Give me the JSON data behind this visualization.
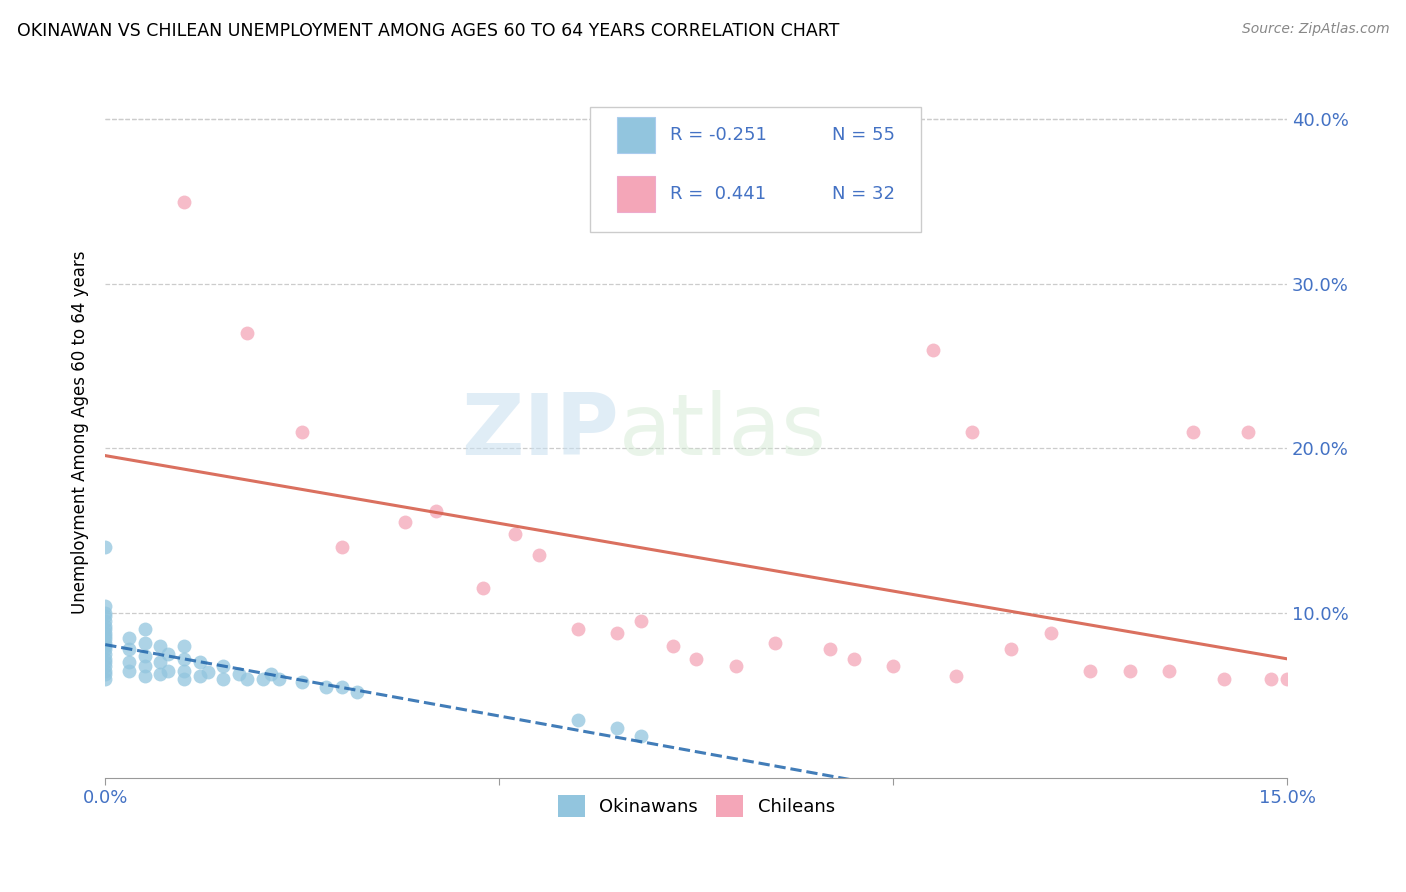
{
  "title": "OKINAWAN VS CHILEAN UNEMPLOYMENT AMONG AGES 60 TO 64 YEARS CORRELATION CHART",
  "source": "Source: ZipAtlas.com",
  "ylabel": "Unemployment Among Ages 60 to 64 years",
  "xlim": [
    0.0,
    0.15
  ],
  "ylim": [
    0.0,
    0.42
  ],
  "legend_label1": "Okinawans",
  "legend_label2": "Chileans",
  "legend_R1": "-0.251",
  "legend_N1": "55",
  "legend_R2": "0.441",
  "legend_N2": "32",
  "color_blue": "#92c5de",
  "color_pink": "#f4a6b8",
  "color_blue_line": "#2166ac",
  "color_pink_line": "#d6604d",
  "watermark_zip": "ZIP",
  "watermark_atlas": "atlas",
  "okinawan_x": [
    0.0,
    0.0,
    0.0,
    0.0,
    0.0,
    0.0,
    0.0,
    0.0,
    0.0,
    0.0,
    0.0,
    0.0,
    0.0,
    0.0,
    0.0,
    0.0,
    0.0,
    0.0,
    0.0,
    0.0,
    0.003,
    0.003,
    0.003,
    0.003,
    0.005,
    0.005,
    0.005,
    0.005,
    0.005,
    0.007,
    0.007,
    0.007,
    0.008,
    0.008,
    0.01,
    0.01,
    0.01,
    0.01,
    0.012,
    0.012,
    0.013,
    0.015,
    0.015,
    0.017,
    0.018,
    0.02,
    0.021,
    0.022,
    0.025,
    0.028,
    0.03,
    0.032,
    0.06,
    0.065,
    0.068
  ],
  "okinawan_y": [
    0.06,
    0.063,
    0.065,
    0.068,
    0.07,
    0.072,
    0.075,
    0.078,
    0.08,
    0.082,
    0.084,
    0.086,
    0.088,
    0.09,
    0.092,
    0.095,
    0.098,
    0.1,
    0.104,
    0.14,
    0.065,
    0.07,
    0.078,
    0.085,
    0.062,
    0.068,
    0.074,
    0.082,
    0.09,
    0.063,
    0.07,
    0.08,
    0.065,
    0.075,
    0.06,
    0.065,
    0.072,
    0.08,
    0.062,
    0.07,
    0.064,
    0.06,
    0.068,
    0.063,
    0.06,
    0.06,
    0.063,
    0.06,
    0.058,
    0.055,
    0.055,
    0.052,
    0.035,
    0.03,
    0.025
  ],
  "chilean_x": [
    0.01,
    0.018,
    0.025,
    0.03,
    0.038,
    0.042,
    0.048,
    0.052,
    0.055,
    0.06,
    0.065,
    0.068,
    0.072,
    0.075,
    0.08,
    0.085,
    0.092,
    0.095,
    0.1,
    0.105,
    0.108,
    0.11,
    0.115,
    0.12,
    0.125,
    0.13,
    0.135,
    0.138,
    0.142,
    0.145,
    0.148,
    0.15
  ],
  "chilean_y": [
    0.35,
    0.27,
    0.21,
    0.14,
    0.155,
    0.162,
    0.115,
    0.148,
    0.135,
    0.09,
    0.088,
    0.095,
    0.08,
    0.072,
    0.068,
    0.082,
    0.078,
    0.072,
    0.068,
    0.26,
    0.062,
    0.21,
    0.078,
    0.088,
    0.065,
    0.065,
    0.065,
    0.21,
    0.06,
    0.21,
    0.06,
    0.06
  ]
}
